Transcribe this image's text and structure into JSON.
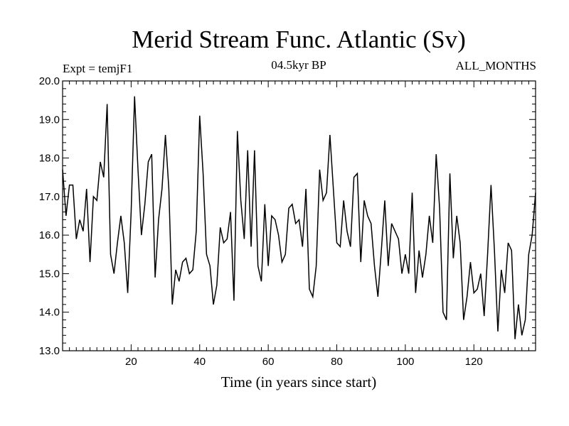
{
  "chart_data": {
    "type": "line",
    "title": "Merid Stream Func. Atlantic (Sv)",
    "subtitle_left": "Expt = temjF1",
    "subtitle_center": "04.5kyr BP",
    "subtitle_right": "ALL_MONTHS",
    "xlabel": "Time (in years since start)",
    "ylabel": "",
    "xlim": [
      0,
      138
    ],
    "ylim": [
      13.0,
      20.0
    ],
    "x_ticks": [
      20,
      40,
      60,
      80,
      100,
      120
    ],
    "y_ticks": [
      "13.0",
      "14.0",
      "15.0",
      "16.0",
      "17.0",
      "18.0",
      "19.0",
      "20.0"
    ],
    "grid": false,
    "series": [
      {
        "name": "Merid Stream Func.",
        "x": [
          0,
          1,
          2,
          3,
          4,
          5,
          6,
          7,
          8,
          9,
          10,
          11,
          12,
          13,
          14,
          15,
          16,
          17,
          18,
          19,
          20,
          21,
          22,
          23,
          24,
          25,
          26,
          27,
          28,
          29,
          30,
          31,
          32,
          33,
          34,
          35,
          36,
          37,
          38,
          39,
          40,
          41,
          42,
          43,
          44,
          45,
          46,
          47,
          48,
          49,
          50,
          51,
          52,
          53,
          54,
          55,
          56,
          57,
          58,
          59,
          60,
          61,
          62,
          63,
          64,
          65,
          66,
          67,
          68,
          69,
          70,
          71,
          72,
          73,
          74,
          75,
          76,
          77,
          78,
          79,
          80,
          81,
          82,
          83,
          84,
          85,
          86,
          87,
          88,
          89,
          90,
          91,
          92,
          93,
          94,
          95,
          96,
          97,
          98,
          99,
          100,
          101,
          102,
          103,
          104,
          105,
          106,
          107,
          108,
          109,
          110,
          111,
          112,
          113,
          114,
          115,
          116,
          117,
          118,
          119,
          120,
          121,
          122,
          123,
          124,
          125,
          126,
          127,
          128,
          129,
          130,
          131,
          132,
          133,
          134,
          135,
          136,
          137,
          138
        ],
        "values": [
          17.7,
          16.5,
          17.3,
          17.3,
          15.9,
          16.4,
          16.1,
          17.2,
          15.3,
          17.0,
          16.9,
          17.9,
          17.5,
          19.4,
          15.5,
          15.0,
          15.8,
          16.5,
          15.8,
          14.5,
          16.6,
          19.6,
          17.7,
          16.0,
          16.8,
          17.9,
          18.1,
          14.9,
          16.4,
          17.2,
          18.6,
          17.2,
          14.2,
          15.1,
          14.8,
          15.3,
          15.4,
          15.0,
          15.1,
          16.1,
          19.1,
          17.6,
          15.5,
          15.2,
          14.2,
          14.7,
          16.2,
          15.8,
          15.9,
          16.6,
          14.3,
          18.7,
          16.9,
          15.9,
          18.2,
          15.7,
          18.2,
          15.2,
          14.8,
          16.8,
          15.2,
          16.5,
          16.4,
          16.0,
          15.3,
          15.5,
          16.7,
          16.8,
          16.3,
          16.4,
          15.7,
          17.2,
          14.6,
          14.4,
          15.2,
          17.7,
          16.9,
          17.1,
          18.6,
          17.2,
          15.8,
          15.7,
          16.9,
          16.1,
          15.7,
          17.5,
          17.6,
          15.3,
          16.9,
          16.5,
          16.3,
          15.2,
          14.4,
          15.6,
          16.9,
          15.2,
          16.3,
          16.1,
          15.9,
          15.0,
          15.5,
          15.0,
          17.1,
          14.5,
          15.6,
          14.9,
          15.5,
          16.5,
          15.8,
          18.1,
          16.7,
          14.0,
          13.8,
          17.6,
          15.4,
          16.5,
          15.8,
          13.8,
          14.4,
          15.3,
          14.5,
          14.6,
          15.0,
          13.9,
          15.5,
          17.3,
          15.6,
          13.5,
          15.1,
          14.5,
          15.8,
          15.6,
          13.3,
          14.2,
          13.4,
          13.8,
          15.5,
          16.0,
          17.1
        ]
      }
    ]
  }
}
